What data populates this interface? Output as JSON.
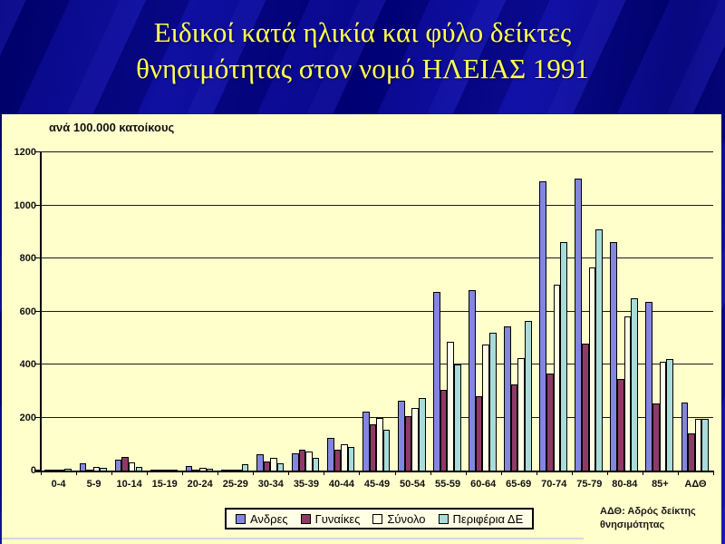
{
  "slide": {
    "title_line1": "Ειδικοί κατά ηλικία και φύλο δείκτες",
    "title_line2": "θνησιμότητας στον νομό ΗΛΕΙΑΣ 1991",
    "title_color": "#FFFF52",
    "background_color": "#000088",
    "panel_color": "#FFFFCC"
  },
  "chart_data": {
    "type": "bar",
    "unit_label": "ανά 100.000 κατοίκους",
    "ylim": [
      0,
      1200
    ],
    "ytick_step": 200,
    "ytick_labels": [
      "0",
      "200",
      "400",
      "600",
      "800",
      "1000",
      "1200"
    ],
    "grid": true,
    "legend_position": "bottom",
    "categories": [
      "0-4",
      "5-9",
      "10-14",
      "15-19",
      "20-24",
      "25-29",
      "30-34",
      "35-39",
      "40-44",
      "45-49",
      "50-54",
      "55-59",
      "60-64",
      "65-69",
      "70-74",
      "75-79",
      "80-84",
      "85+",
      "ΑΔΘ"
    ],
    "series": [
      {
        "name": "Ανδρες",
        "color": "#8486DE",
        "values": [
          3,
          28,
          40,
          5,
          18,
          5,
          63,
          65,
          122,
          222,
          265,
          672,
          680,
          545,
          1090,
          1100,
          860,
          635,
          255
        ]
      },
      {
        "name": "Γυναίκες",
        "color": "#8E3A66",
        "values": [
          4,
          3,
          52,
          3,
          3,
          2,
          33,
          80,
          78,
          175,
          205,
          305,
          280,
          325,
          365,
          480,
          345,
          253,
          140
        ]
      },
      {
        "name": "Σύνολο",
        "color": "#FFFFE8",
        "values": [
          4,
          14,
          30,
          4,
          10,
          4,
          48,
          72,
          100,
          198,
          235,
          485,
          475,
          425,
          700,
          765,
          580,
          410,
          195
        ]
      },
      {
        "name": "Περιφέρια ΔΕ",
        "color": "#A9DCD8",
        "values": [
          7,
          9,
          15,
          4,
          6,
          23,
          28,
          48,
          88,
          154,
          272,
          400,
          520,
          565,
          860,
          910,
          650,
          420,
          195
        ]
      }
    ],
    "note_line1": "ΑΔΘ: Αδρός δείκτης",
    "note_line2": "θνησιμότητας"
  }
}
